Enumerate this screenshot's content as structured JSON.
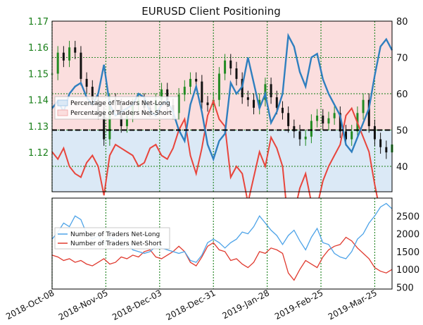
{
  "title": "EURUSD Client Positioning",
  "colors": {
    "price_axis": "#1a7f1a",
    "long_line": "#2f7fbf",
    "short_line": "#e8453c",
    "long_fill": "#dbe9f6",
    "short_fill": "#fbdede",
    "candle_up": "#228b22",
    "candle_down": "#111111",
    "grid": "#2e8b2e",
    "count_long": "#4da3e8",
    "count_short": "#e03a2f"
  },
  "chart_data": [
    {
      "type": "line",
      "title": "EURUSD Client Positioning",
      "x_tick_labels": [
        "2018-Oct-08",
        "2018-Nov-05",
        "2018-Dec-03",
        "2018-Dec-31",
        "2019-Jan-28",
        "2019-Feb-25",
        "2019-Mar-25"
      ],
      "left_axis": {
        "ticks": [
          "1.12",
          "1.13",
          "1.14",
          "1.15",
          "1.16",
          "1.17"
        ],
        "range": [
          1.105,
          1.17
        ]
      },
      "right_axis": {
        "ticks": [
          "40",
          "50",
          "60",
          "70",
          "80"
        ],
        "range": [
          33,
          80
        ]
      },
      "reference_line": 50,
      "legend": {
        "placement": "left-middle",
        "entries": [
          "Percentage of Traders Net-Long",
          "Percentage of Traders Net-Short"
        ]
      },
      "series": [
        {
          "name": "Percentage of Traders Net-Long",
          "x": [
            0,
            3,
            6,
            9,
            12,
            15,
            18,
            21,
            24,
            27,
            30,
            33,
            36,
            39,
            42,
            45,
            48,
            51,
            54,
            57,
            60,
            63,
            66,
            69,
            72,
            75,
            78,
            81,
            84,
            87,
            90,
            93,
            96,
            99,
            102,
            105,
            108,
            111,
            114,
            117,
            120,
            123,
            126,
            129,
            132,
            135,
            138,
            141,
            144,
            147,
            150,
            153,
            156,
            159,
            162,
            165,
            168,
            171,
            174,
            177
          ],
          "values": [
            56,
            58,
            55,
            60,
            62,
            63,
            59,
            57,
            60,
            68,
            57,
            54,
            55,
            56,
            57,
            60,
            59,
            55,
            54,
            57,
            58,
            55,
            50,
            47,
            57,
            62,
            55,
            46,
            42,
            47,
            49,
            63,
            60,
            62,
            70,
            63,
            56,
            60,
            52,
            55,
            60,
            76,
            73,
            66,
            62,
            70,
            71,
            64,
            60,
            57,
            54,
            46,
            44,
            48,
            52,
            56,
            65,
            73,
            75,
            72
          ]
        },
        {
          "name": "Percentage of Traders Net-Short",
          "x": [
            0,
            3,
            6,
            9,
            12,
            15,
            18,
            21,
            24,
            27,
            30,
            33,
            36,
            39,
            42,
            45,
            48,
            51,
            54,
            57,
            60,
            63,
            66,
            69,
            72,
            75,
            78,
            81,
            84,
            87,
            90,
            93,
            96,
            99,
            102,
            105,
            108,
            111,
            114,
            117,
            120,
            123,
            126,
            129,
            132,
            135,
            138,
            141,
            144,
            147,
            150,
            153,
            156,
            159,
            162,
            165,
            168,
            171,
            174,
            177
          ],
          "values": [
            44,
            42,
            45,
            40,
            38,
            37,
            41,
            43,
            40,
            32,
            43,
            46,
            45,
            44,
            43,
            40,
            41,
            45,
            46,
            43,
            42,
            45,
            50,
            53,
            43,
            38,
            45,
            54,
            58,
            53,
            51,
            37,
            40,
            38,
            30,
            37,
            44,
            40,
            48,
            45,
            40,
            24,
            27,
            34,
            38,
            30,
            29,
            36,
            40,
            43,
            46,
            54,
            56,
            52,
            48,
            44,
            35,
            27,
            25,
            28
          ]
        },
        {
          "name": "EURUSD",
          "x": [
            0,
            3,
            6,
            9,
            12,
            15,
            18,
            21,
            24,
            27,
            30,
            33,
            36,
            39,
            42,
            45,
            48,
            51,
            54,
            57,
            60,
            63,
            66,
            69,
            72,
            75,
            78,
            81,
            84,
            87,
            90,
            93,
            96,
            99,
            102,
            105,
            108,
            111,
            114,
            117,
            120,
            123,
            126,
            129,
            132,
            135,
            138,
            141,
            144,
            147,
            150,
            153,
            156,
            159,
            162,
            165,
            168,
            171,
            174,
            177
          ],
          "values": [
            1.15,
            1.158,
            1.155,
            1.16,
            1.158,
            1.148,
            1.145,
            1.14,
            1.135,
            1.125,
            1.14,
            1.138,
            1.13,
            1.134,
            1.138,
            1.14,
            1.137,
            1.136,
            1.14,
            1.144,
            1.138,
            1.135,
            1.142,
            1.145,
            1.148,
            1.147,
            1.139,
            1.138,
            1.14,
            1.15,
            1.155,
            1.152,
            1.148,
            1.141,
            1.14,
            1.137,
            1.14,
            1.146,
            1.141,
            1.137,
            1.135,
            1.13,
            1.128,
            1.125,
            1.126,
            1.132,
            1.134,
            1.131,
            1.133,
            1.135,
            1.128,
            1.125,
            1.128,
            1.135,
            1.14,
            1.13,
            1.125,
            1.122,
            1.12,
            1.123
          ]
        }
      ]
    },
    {
      "type": "line",
      "x_tick_labels": [
        "2018-Oct-08",
        "2018-Nov-05",
        "2018-Dec-03",
        "2018-Dec-31",
        "2019-Jan-28",
        "2019-Feb-25",
        "2019-Mar-25"
      ],
      "right_axis": {
        "ticks": [
          "500",
          "1000",
          "1500",
          "2000",
          "2500"
        ],
        "range": [
          450,
          3000
        ]
      },
      "legend": {
        "placement": "upper-left",
        "entries": [
          "Number of Traders Net-Long",
          "Number of Traders Net-Short"
        ]
      },
      "series": [
        {
          "name": "Number of Traders Net-Long",
          "x": [
            0,
            3,
            6,
            9,
            12,
            15,
            18,
            21,
            24,
            27,
            30,
            33,
            36,
            39,
            42,
            45,
            48,
            51,
            54,
            57,
            60,
            63,
            66,
            69,
            72,
            75,
            78,
            81,
            84,
            87,
            90,
            93,
            96,
            99,
            102,
            105,
            108,
            111,
            114,
            117,
            120,
            123,
            126,
            129,
            132,
            135,
            138,
            141,
            144,
            147,
            150,
            153,
            156,
            159,
            162,
            165,
            168,
            171,
            174,
            177
          ],
          "values": [
            1850,
            2050,
            2300,
            2200,
            2500,
            2400,
            2000,
            1850,
            1950,
            1700,
            1900,
            1850,
            1650,
            1750,
            1550,
            1500,
            1450,
            1500,
            1650,
            1600,
            1550,
            1500,
            1450,
            1500,
            1250,
            1200,
            1400,
            1750,
            1850,
            1750,
            1600,
            1750,
            1850,
            2050,
            2000,
            2200,
            2500,
            2300,
            2100,
            1950,
            1700,
            1950,
            2100,
            1800,
            1550,
            1900,
            2150,
            1750,
            1700,
            1450,
            1350,
            1300,
            1500,
            1850,
            2000,
            2300,
            2500,
            2750,
            2850,
            2700
          ]
        },
        {
          "name": "Number of Traders Net-Short",
          "x": [
            0,
            3,
            6,
            9,
            12,
            15,
            18,
            21,
            24,
            27,
            30,
            33,
            36,
            39,
            42,
            45,
            48,
            51,
            54,
            57,
            60,
            63,
            66,
            69,
            72,
            75,
            78,
            81,
            84,
            87,
            90,
            93,
            96,
            99,
            102,
            105,
            108,
            111,
            114,
            117,
            120,
            123,
            126,
            129,
            132,
            135,
            138,
            141,
            144,
            147,
            150,
            153,
            156,
            159,
            162,
            165,
            168,
            171,
            174,
            177
          ],
          "values": [
            1400,
            1350,
            1250,
            1300,
            1200,
            1250,
            1150,
            1100,
            1200,
            1300,
            1150,
            1200,
            1350,
            1300,
            1400,
            1350,
            1500,
            1550,
            1350,
            1300,
            1400,
            1500,
            1650,
            1500,
            1200,
            1100,
            1350,
            1650,
            1750,
            1550,
            1500,
            1250,
            1300,
            1150,
            1050,
            1200,
            1500,
            1450,
            1600,
            1550,
            1450,
            900,
            700,
            1000,
            1250,
            1150,
            1050,
            1350,
            1550,
            1650,
            1700,
            1900,
            1800,
            1600,
            1450,
            1300,
            1050,
            950,
            900,
            1000
          ]
        }
      ]
    }
  ]
}
